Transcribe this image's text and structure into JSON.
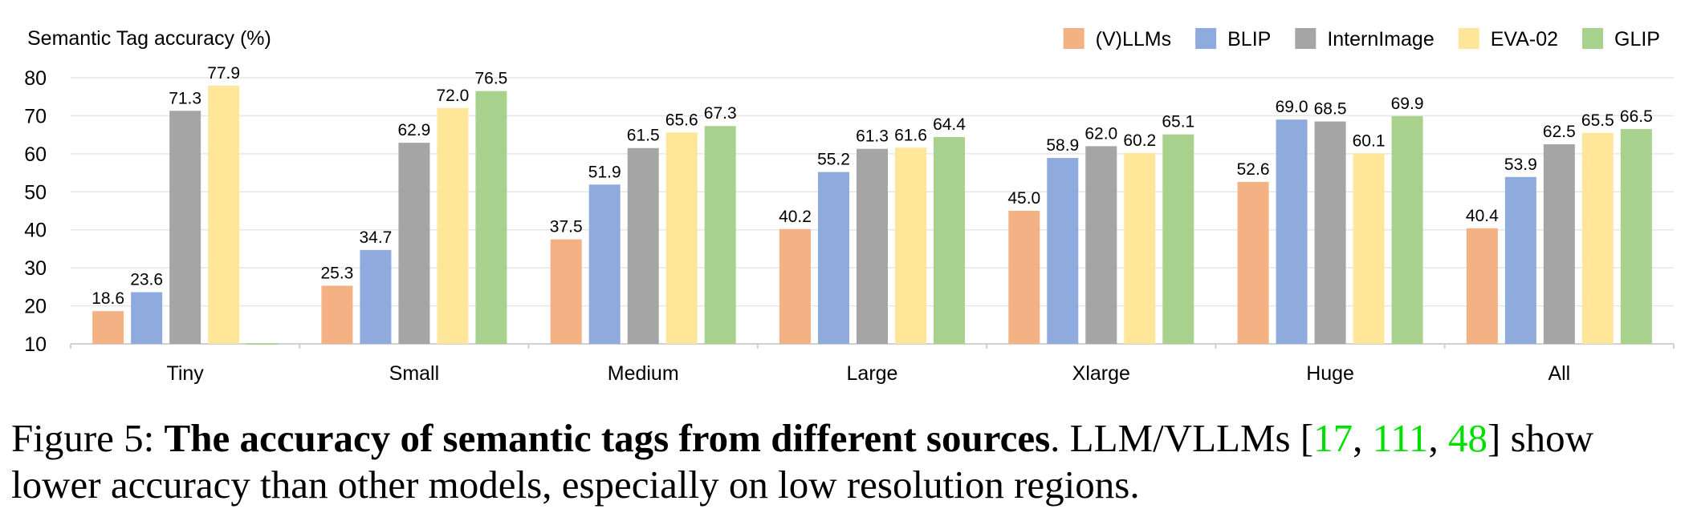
{
  "chart_data": {
    "type": "bar",
    "title": "",
    "ylabel": "Semantic Tag accuracy (%)",
    "xlabel": "",
    "ylim": [
      10,
      80
    ],
    "yticks": [
      10,
      20,
      30,
      40,
      50,
      60,
      70,
      80
    ],
    "grid": true,
    "legend_position": "top-right",
    "categories": [
      "Tiny",
      "Small",
      "Medium",
      "Large",
      "Xlarge",
      "Huge",
      "All"
    ],
    "series": [
      {
        "name": "(V)LLMs",
        "color": "#f4b183",
        "values": [
          18.6,
          25.3,
          37.5,
          40.2,
          45.0,
          52.6,
          40.4
        ],
        "labels": [
          "18.6",
          "25.3",
          "37.5",
          "40.2",
          "45.0",
          "52.6",
          "40.4"
        ]
      },
      {
        "name": "BLIP",
        "color": "#8faadc",
        "values": [
          23.6,
          34.7,
          51.9,
          55.2,
          58.9,
          69.0,
          53.9
        ],
        "labels": [
          "23.6",
          "34.7",
          "51.9",
          "55.2",
          "58.9",
          "69.0",
          "53.9"
        ]
      },
      {
        "name": "InternImage",
        "color": "#a5a5a5",
        "values": [
          71.3,
          62.9,
          61.5,
          61.3,
          62.0,
          68.5,
          62.5
        ],
        "labels": [
          "71.3",
          "62.9",
          "61.5",
          "61.3",
          "62.0",
          "68.5",
          "62.5"
        ]
      },
      {
        "name": "EVA-02",
        "color": "#ffe699",
        "values": [
          77.9,
          72.0,
          65.6,
          61.6,
          60.2,
          60.1,
          65.5
        ],
        "labels": [
          "77.9",
          "72.0",
          "65.6",
          "61.6",
          "60.2",
          "60.1",
          "65.5"
        ]
      },
      {
        "name": "GLIP",
        "color": "#a9d18e",
        "values": [
          10.1,
          76.5,
          67.3,
          64.4,
          65.1,
          69.9,
          66.5
        ],
        "labels": [
          "",
          "76.5",
          "67.3",
          "64.4",
          "65.1",
          "69.9",
          "66.5"
        ]
      }
    ]
  },
  "caption": {
    "figure_label": "Figure 5:",
    "bold_title": "The accuracy of semantic tags from different sources",
    "text_before_refs": ". LLM/VLLMs [",
    "refs": [
      "17",
      "111",
      "48"
    ],
    "text_after_refs": "] show lower accuracy than other models, especially on low resolution regions."
  }
}
